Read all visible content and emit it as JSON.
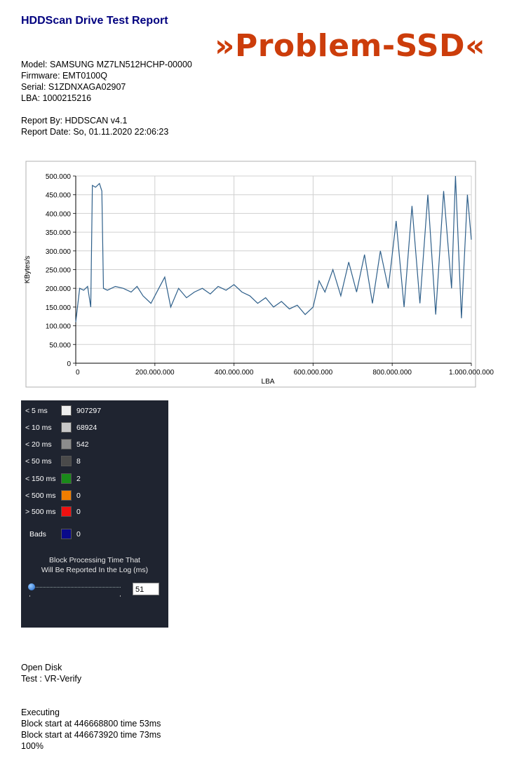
{
  "report": {
    "title": "HDDScan Drive Test Report",
    "badge": "»Problem-SSD«"
  },
  "drive": {
    "model": "Model: SAMSUNG MZ7LN512HCHP-00000",
    "firmware": "Firmware: EMT0100Q",
    "serial": "Serial: S1ZDNXAGA02907",
    "lba": "LBA: 1000215216"
  },
  "meta": {
    "report_by": "Report By: HDDSCAN v4.1",
    "report_date": "Report Date: So, 01.11.2020 22:06:23"
  },
  "chart_data": {
    "type": "line",
    "title": "",
    "xlabel": "LBA",
    "ylabel": "KBytes/s",
    "xlim": [
      0,
      1000215216
    ],
    "ylim": [
      0,
      500000
    ],
    "grid": true,
    "x_tick_labels": [
      "0",
      "200.000.000",
      "400.000.000",
      "600.000.000",
      "800.000.000",
      "1.000.000.000"
    ],
    "y_tick_labels": [
      "0",
      "50.000",
      "100.000",
      "150.000",
      "200.000",
      "250.000",
      "300.000",
      "350.000",
      "400.000",
      "450.000",
      "500.000"
    ],
    "color": "#2e5f8a",
    "series": [
      {
        "x": [
          0,
          10000000,
          20000000,
          30000000,
          38000000,
          42000000,
          50000000,
          60000000,
          66000000,
          70000000,
          80000000,
          100000000,
          120000000,
          140000000,
          155000000,
          170000000,
          190000000,
          210000000,
          225000000,
          240000000,
          260000000,
          280000000,
          300000000,
          320000000,
          340000000,
          360000000,
          380000000,
          400000000,
          420000000,
          440000000,
          460000000,
          480000000,
          500000000,
          520000000,
          540000000,
          560000000,
          580000000,
          600000000,
          615000000,
          630000000,
          650000000,
          670000000,
          690000000,
          710000000,
          730000000,
          750000000,
          770000000,
          790000000,
          810000000,
          830000000,
          850000000,
          870000000,
          890000000,
          910000000,
          930000000,
          950000000,
          960000000,
          975000000,
          990000000,
          1000000000
        ],
        "y": [
          110000,
          200000,
          195000,
          205000,
          150000,
          475000,
          470000,
          480000,
          460000,
          200000,
          195000,
          205000,
          200000,
          190000,
          205000,
          180000,
          160000,
          200000,
          230000,
          150000,
          200000,
          175000,
          190000,
          200000,
          185000,
          205000,
          195000,
          210000,
          190000,
          180000,
          160000,
          175000,
          150000,
          165000,
          145000,
          155000,
          130000,
          150000,
          220000,
          190000,
          250000,
          180000,
          270000,
          190000,
          290000,
          160000,
          300000,
          200000,
          380000,
          150000,
          420000,
          160000,
          450000,
          130000,
          460000,
          200000,
          500000,
          120000,
          450000,
          330000
        ]
      }
    ]
  },
  "latency": {
    "rows": [
      {
        "label": "< 5 ms",
        "count": "907297",
        "color": "#eeeeee"
      },
      {
        "label": "< 10 ms",
        "count": "68924",
        "color": "#c8c8c8"
      },
      {
        "label": "< 20 ms",
        "count": "542",
        "color": "#8c8c8c"
      },
      {
        "label": "< 50 ms",
        "count": "8",
        "color": "#4a4a4a"
      },
      {
        "label": "< 150 ms",
        "count": "2",
        "color": "#1a8a1a"
      },
      {
        "label": "< 500 ms",
        "count": "0",
        "color": "#f07d00"
      },
      {
        "label": "> 500 ms",
        "count": "0",
        "color": "#ee1111"
      }
    ],
    "bads": {
      "label": "Bads",
      "count": "0",
      "color": "#0a0a8a"
    },
    "caption_line1": "Block Processing Time That",
    "caption_line2": "Will Be Reported In the Log (ms)",
    "threshold": "51"
  },
  "log": {
    "open": [
      "Open Disk",
      "Test : VR-Verify"
    ],
    "exec": [
      "Executing",
      "Block start at 446668800 time 53ms",
      "Block start at 446673920 time 73ms",
      "100%"
    ]
  }
}
